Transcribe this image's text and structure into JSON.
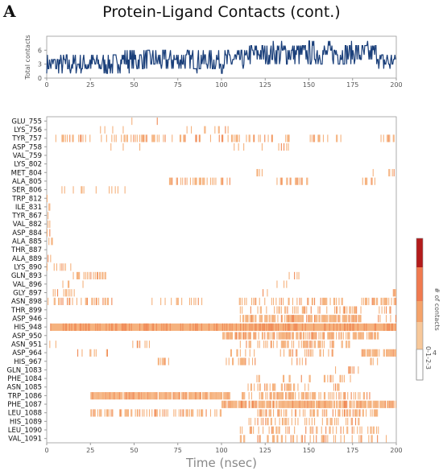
{
  "panel_letter": "A",
  "title": "Protein-Ligand Contacts (cont.)",
  "colors": {
    "line": "#1a3f7a",
    "band": "#f5b27e",
    "band_strong": "#f08a57",
    "scale": [
      "#f7c89a",
      "#f5a36a",
      "#f07a4f",
      "#b31b1b"
    ]
  },
  "chart_data": [
    {
      "type": "line",
      "name": "total-contacts",
      "ylabel": "Total contacts",
      "xlim": [
        0,
        200
      ],
      "ylim": [
        0,
        9
      ],
      "x_ticks": [
        0,
        25,
        50,
        75,
        100,
        125,
        150,
        175,
        200
      ],
      "y_ticks": [
        0,
        3,
        6
      ],
      "segments": [
        {
          "x0": 0,
          "x1": 40,
          "mean": 3.0,
          "amp": 2.2
        },
        {
          "x0": 40,
          "x1": 115,
          "mean": 3.8,
          "amp": 2.4
        },
        {
          "x0": 115,
          "x1": 190,
          "mean": 5.3,
          "amp": 2.6
        },
        {
          "x0": 190,
          "x1": 200,
          "mean": 3.5,
          "amp": 2.0
        }
      ]
    },
    {
      "type": "heatmap",
      "name": "residue-contacts",
      "xlabel": "Time (nsec)",
      "xlim": [
        0,
        200
      ],
      "x_ticks": [
        0,
        25,
        50,
        75,
        100,
        125,
        150,
        175,
        200
      ],
      "colorbar_label": "# of contacts",
      "colorbar_tick": "4",
      "residues": [
        "GLU_755",
        "LYS_756",
        "TYR_757",
        "ASP_758",
        "VAL_759",
        "LYS_802",
        "MET_804",
        "ALA_805",
        "SER_806",
        "TRP_812",
        "ILE_831",
        "TYR_867",
        "VAL_882",
        "ASP_884",
        "ALA_885",
        "THR_887",
        "ALA_889",
        "LYS_890",
        "GLN_893",
        "VAL_896",
        "GLY_897",
        "ASN_898",
        "THR_899",
        "ASP_946",
        "HIS_948",
        "ASP_950",
        "ASN_951",
        "ASP_964",
        "HIS_967",
        "GLN_1083",
        "PHE_1084",
        "ASN_1085",
        "TRP_1086",
        "PHE_1087",
        "LEU_1088",
        "HIS_1089",
        "LEU_1090",
        "VAL_1091"
      ],
      "rows": [
        [
          [
            40,
            65,
            0.08
          ]
        ],
        [
          [
            25,
            45,
            0.1
          ],
          [
            80,
            110,
            0.1
          ]
        ],
        [
          [
            5,
            90,
            0.35
          ],
          [
            92,
            140,
            0.3
          ],
          [
            150,
            170,
            0.25
          ],
          [
            185,
            200,
            0.2
          ]
        ],
        [
          [
            30,
            55,
            0.12
          ],
          [
            105,
            145,
            0.18
          ]
        ],
        [],
        [],
        [
          [
            120,
            125,
            0.3
          ],
          [
            185,
            200,
            0.2
          ]
        ],
        [
          [
            70,
            105,
            0.55
          ],
          [
            130,
            150,
            0.3
          ],
          [
            180,
            192,
            0.4
          ]
        ],
        [
          [
            5,
            25,
            0.15
          ],
          [
            25,
            60,
            0.12
          ]
        ],
        [
          [
            0,
            3,
            0.2
          ]
        ],
        [
          [
            0,
            2,
            0.4
          ]
        ],
        [
          [
            0,
            2,
            0.4
          ]
        ],
        [
          [
            0,
            3,
            0.3
          ]
        ],
        [
          [
            0,
            3,
            0.5
          ]
        ],
        [
          [
            0,
            5,
            0.3
          ]
        ],
        [
          [
            0,
            4,
            0.15
          ]
        ],
        [
          [
            0,
            4,
            0.25
          ]
        ],
        [
          [
            0,
            6,
            0.3
          ],
          [
            5,
            15,
            0.2
          ]
        ],
        [
          [
            15,
            35,
            0.6
          ],
          [
            135,
            145,
            0.15
          ]
        ],
        [
          [
            5,
            30,
            0.1
          ],
          [
            130,
            145,
            0.1
          ]
        ],
        [
          [
            3,
            18,
            0.2
          ],
          [
            120,
            135,
            0.1
          ],
          [
            198,
            200,
            0.9
          ]
        ],
        [
          [
            0,
            40,
            0.3
          ],
          [
            60,
            90,
            0.2
          ],
          [
            110,
            170,
            0.3
          ],
          [
            180,
            200,
            0.7
          ]
        ],
        [
          [
            110,
            180,
            0.35
          ],
          [
            190,
            200,
            0.2
          ]
        ],
        [
          [
            110,
            180,
            0.7
          ],
          [
            185,
            200,
            0.2
          ]
        ],
        [
          [
            2,
            200,
            1.0,
            "strong"
          ]
        ],
        [
          [
            100,
            190,
            0.7
          ]
        ],
        [
          [
            0,
            6,
            0.3
          ],
          [
            40,
            60,
            0.12
          ],
          [
            110,
            175,
            0.4
          ]
        ],
        [
          [
            15,
            35,
            0.15
          ],
          [
            100,
            120,
            0.2
          ],
          [
            130,
            165,
            0.3
          ],
          [
            180,
            200,
            0.8
          ]
        ],
        [
          [
            60,
            70,
            0.2
          ],
          [
            100,
            120,
            0.3
          ],
          [
            140,
            150,
            0.15
          ],
          [
            185,
            190,
            0.2
          ]
        ],
        [
          [
            165,
            180,
            0.2
          ]
        ],
        [
          [
            120,
            180,
            0.2
          ]
        ],
        [
          [
            115,
            150,
            0.4
          ],
          [
            160,
            170,
            0.2
          ]
        ],
        [
          [
            25,
            105,
            0.95
          ],
          [
            110,
            185,
            0.5
          ]
        ],
        [
          [
            100,
            200,
            0.85
          ],
          [
            140,
            180,
            0.5
          ]
        ],
        [
          [
            25,
            100,
            0.4
          ],
          [
            120,
            190,
            0.5
          ]
        ],
        [
          [
            115,
            180,
            0.35
          ]
        ],
        [
          [
            110,
            190,
            0.3
          ]
        ],
        [
          [
            110,
            195,
            0.3
          ]
        ]
      ]
    }
  ]
}
